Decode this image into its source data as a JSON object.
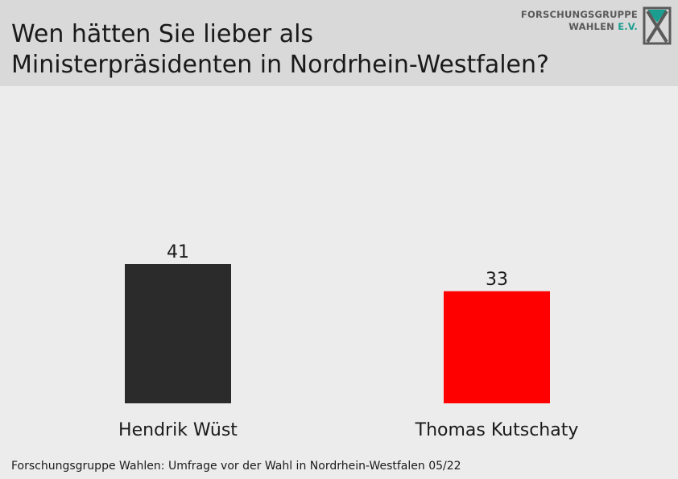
{
  "header": {
    "title": "Wen hätten Sie lieber als\nMinisterpräsidenten in Nordrhein-Westfalen?",
    "logo_line1": "FORSCHUNGSGRUPPE",
    "logo_line2": "WAHLEN",
    "logo_line2_accent": "E.V."
  },
  "chart_data": {
    "type": "bar",
    "categories": [
      "Hendrik Wüst",
      "Thomas Kutschaty"
    ],
    "values": [
      41,
      33
    ],
    "colors": [
      "#2b2b2b",
      "#ff0000"
    ],
    "title": "Wen hätten Sie lieber als Ministerpräsidenten in Nordrhein-Westfalen?",
    "xlabel": "",
    "ylabel": "",
    "ylim": [
      0,
      100
    ],
    "grid": false,
    "data_labels": true
  },
  "footer": {
    "source": "Forschungsgruppe Wahlen: Umfrage vor der Wahl in Nordrhein-Westfalen 05/22"
  },
  "colors": {
    "header_bg": "#d9d9d9",
    "body_bg": "#ececec",
    "logo_accent": "#1b9e90"
  },
  "icons": {
    "logo": "forschungsgruppe-wahlen-logo-icon"
  }
}
